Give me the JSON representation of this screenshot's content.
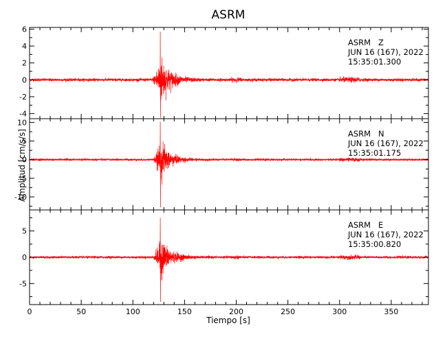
{
  "chart_data": {
    "type": "line",
    "title": "ASRM",
    "xlabel": "Tiempo [s]",
    "ylabel": "Amplitud [cm/s/s]",
    "xlim": [
      0,
      386
    ],
    "x_ticks": [
      0,
      50,
      100,
      150,
      200,
      250,
      300,
      350
    ],
    "line_color": "#ff0000",
    "grid": false,
    "panels": [
      {
        "component": "ASRM   Z",
        "date": "JUN 16 (167), 2022",
        "time": "15:35:01.300",
        "ylim": [
          -4.6,
          6.2
        ],
        "y_ticks": [
          -4,
          -2,
          0,
          2,
          4,
          6
        ],
        "noise_amp": 0.15,
        "onset_s": 119,
        "peak_time_s": 126.5,
        "peak_max": 5.7,
        "peak_min": -4.5
      },
      {
        "component": "ASRM   N",
        "date": "JUN 16 (167), 2022",
        "time": "15:35:01.175",
        "ylim": [
          -13.5,
          11
        ],
        "y_ticks": [
          -10,
          -5,
          0,
          5,
          10
        ],
        "noise_amp": 0.25,
        "onset_s": 120,
        "peak_time_s": 126.5,
        "peak_max": 10.2,
        "peak_min": -12.8
      },
      {
        "component": "ASRM   E",
        "date": "JUN 16 (167), 2022",
        "time": "15:35:00.820",
        "ylim": [
          -9,
          9
        ],
        "y_ticks": [
          -5,
          0,
          5
        ],
        "noise_amp": 0.2,
        "onset_s": 120,
        "peak_time_s": 126.5,
        "peak_max": 7.5,
        "peak_min": -8.5
      }
    ]
  }
}
